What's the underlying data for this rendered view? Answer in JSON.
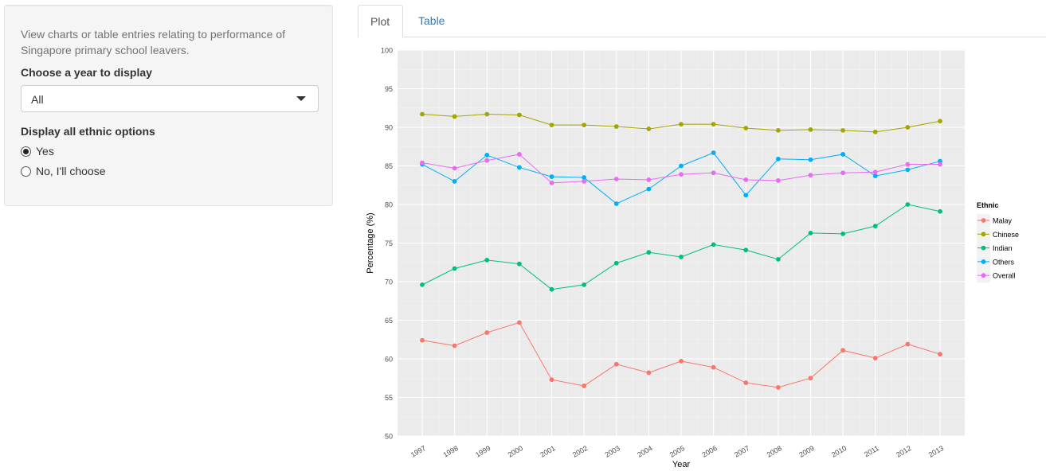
{
  "sidebar": {
    "description": "View charts or table entries relating to performance of Singapore primary school leavers.",
    "year_label": "Choose a year to display",
    "year_selected": "All",
    "ethnic_label": "Display all ethnic options",
    "options": [
      {
        "label": "Yes",
        "checked": true
      },
      {
        "label": "No, I'll choose",
        "checked": false
      }
    ]
  },
  "tabs": [
    {
      "label": "Plot",
      "active": true
    },
    {
      "label": "Table",
      "active": false
    }
  ],
  "chart_data": {
    "type": "line",
    "xlabel": "Year",
    "ylabel": "Percentage (%)",
    "ylim": [
      50,
      100
    ],
    "yticks": [
      50,
      55,
      60,
      65,
      70,
      75,
      80,
      85,
      90,
      95,
      100
    ],
    "grid": true,
    "legend_title": "Ethnic",
    "legend_position": "right",
    "categories": [
      "1997",
      "1998",
      "1999",
      "2000",
      "2001",
      "2002",
      "2003",
      "2004",
      "2005",
      "2006",
      "2007",
      "2008",
      "2009",
      "2010",
      "2011",
      "2012",
      "2013"
    ],
    "series": [
      {
        "name": "Malay",
        "color": "#F8766D",
        "values": [
          62.4,
          61.7,
          63.4,
          64.7,
          57.3,
          56.5,
          59.3,
          58.2,
          59.7,
          58.9,
          56.9,
          56.3,
          57.5,
          61.1,
          60.1,
          61.9,
          60.6
        ]
      },
      {
        "name": "Chinese",
        "color": "#A3A500",
        "values": [
          91.7,
          91.4,
          91.7,
          91.6,
          90.3,
          90.3,
          90.1,
          89.8,
          90.4,
          90.4,
          89.9,
          89.6,
          89.7,
          89.6,
          89.4,
          90.0,
          90.8
        ]
      },
      {
        "name": "Indian",
        "color": "#00BF7D",
        "values": [
          69.6,
          71.7,
          72.8,
          72.3,
          69.0,
          69.6,
          72.4,
          73.8,
          73.2,
          74.8,
          74.1,
          72.9,
          76.3,
          76.2,
          77.2,
          80.0,
          79.1
        ]
      },
      {
        "name": "Others",
        "color": "#00B0F6",
        "values": [
          85.2,
          83.0,
          86.4,
          84.8,
          83.6,
          83.5,
          80.1,
          82.0,
          85.0,
          86.7,
          81.2,
          85.9,
          85.8,
          86.5,
          83.7,
          84.5,
          85.6
        ]
      },
      {
        "name": "Overall",
        "color": "#E76BF3",
        "values": [
          85.4,
          84.7,
          85.7,
          86.5,
          82.8,
          83.0,
          83.3,
          83.2,
          83.9,
          84.1,
          83.2,
          83.1,
          83.8,
          84.1,
          84.2,
          85.2,
          85.2
        ]
      }
    ]
  }
}
